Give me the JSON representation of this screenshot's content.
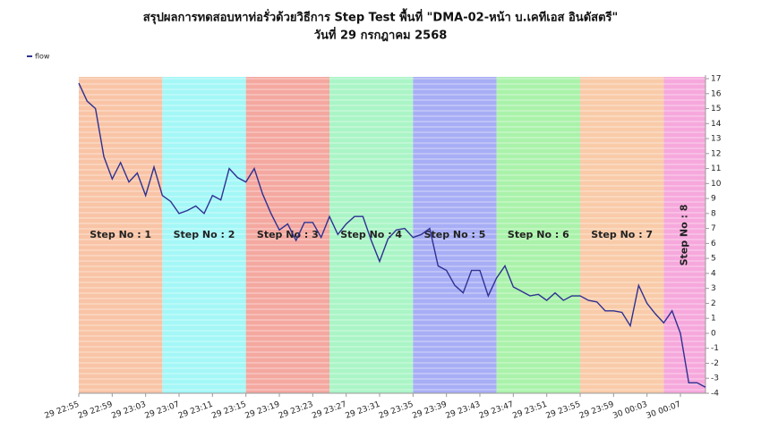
{
  "chart_data": {
    "type": "line",
    "title": "สรุปผลการทดสอบหาท่อรั่วด้วยวิธีการ Step Test พื้นที่ \"DMA-02-หน้า บ.เคทีเอส อินดัสตรี\"",
    "subtitle": "วันที่ 29 กรกฎาคม 2568",
    "x": [
      "29 22:55",
      "29 22:56",
      "29 22:57",
      "29 22:58",
      "29 22:59",
      "29 23:00",
      "29 23:01",
      "29 23:02",
      "29 23:03",
      "29 23:04",
      "29 23:05",
      "29 23:06",
      "29 23:07",
      "29 23:08",
      "29 23:09",
      "29 23:10",
      "29 23:11",
      "29 23:12",
      "29 23:13",
      "29 23:14",
      "29 23:15",
      "29 23:16",
      "29 23:17",
      "29 23:18",
      "29 23:19",
      "29 23:20",
      "29 23:21",
      "29 23:22",
      "29 23:23",
      "29 23:24",
      "29 23:25",
      "29 23:26",
      "29 23:27",
      "29 23:28",
      "29 23:29",
      "29 23:30",
      "29 23:31",
      "29 23:32",
      "29 23:33",
      "29 23:34",
      "29 23:35",
      "29 23:36",
      "29 23:37",
      "29 23:38",
      "29 23:39",
      "29 23:40",
      "29 23:41",
      "29 23:42",
      "29 23:43",
      "29 23:44",
      "29 23:45",
      "29 23:46",
      "29 23:47",
      "29 23:48",
      "29 23:49",
      "29 23:50",
      "29 23:51",
      "29 23:52",
      "29 23:53",
      "29 23:54",
      "29 23:55",
      "29 23:56",
      "29 23:57",
      "29 23:58",
      "29 23:59",
      "30 00:00",
      "30 00:01",
      "30 00:02",
      "30 00:03",
      "30 00:04",
      "30 00:05",
      "30 00:06",
      "30 00:07",
      "30 00:08",
      "30 00:09",
      "30 00:10"
    ],
    "series": [
      {
        "name": "flow",
        "color": "#2e3192",
        "values": [
          16.7,
          15.5,
          15.0,
          11.8,
          10.3,
          11.4,
          10.1,
          10.7,
          9.2,
          11.1,
          9.2,
          8.8,
          8.0,
          8.2,
          8.5,
          8.0,
          9.2,
          8.9,
          11.0,
          10.4,
          10.1,
          11.0,
          9.3,
          8.0,
          6.9,
          7.3,
          6.2,
          7.4,
          7.4,
          6.4,
          7.8,
          6.6,
          7.3,
          7.8,
          7.8,
          6.2,
          4.8,
          6.3,
          6.9,
          7.0,
          6.4,
          6.6,
          7.0,
          4.5,
          4.2,
          3.2,
          2.7,
          4.2,
          4.2,
          2.5,
          3.7,
          4.5,
          3.1,
          2.8,
          2.5,
          2.6,
          2.2,
          2.7,
          2.2,
          2.5,
          2.5,
          2.2,
          2.1,
          1.5,
          1.5,
          1.4,
          0.5,
          3.2,
          2.0,
          1.3,
          0.7,
          1.5,
          0.0,
          -3.3,
          -3.3,
          -3.6
        ]
      }
    ],
    "bands": [
      {
        "label": "Step No : 1",
        "start": "29 22:55",
        "end": "29 23:05",
        "color": "#f9c4a6"
      },
      {
        "label": "Step No : 2",
        "start": "29 23:05",
        "end": "29 23:15",
        "color": "#a4f7f7"
      },
      {
        "label": "Step No : 3",
        "start": "29 23:15",
        "end": "29 23:25",
        "color": "#f4a8a0"
      },
      {
        "label": "Step No : 4",
        "start": "29 23:25",
        "end": "29 23:35",
        "color": "#aaf5c6"
      },
      {
        "label": "Step No : 5",
        "start": "29 23:35",
        "end": "29 23:45",
        "color": "#a8aef5"
      },
      {
        "label": "Step No : 6",
        "start": "29 23:45",
        "end": "29 23:55",
        "color": "#aaf2aa"
      },
      {
        "label": "Step No : 7",
        "start": "29 23:55",
        "end": "30 00:05",
        "color": "#f9cba9"
      },
      {
        "label": "Step No : 8",
        "start": "30 00:05",
        "end": "30 00:10",
        "color": "#f6a8dc"
      }
    ],
    "xlim": [
      "29 22:55",
      "30 00:10"
    ],
    "xticks": [
      "29 22:55",
      "29 22:59",
      "29 23:03",
      "29 23:07",
      "29 23:11",
      "29 23:15",
      "29 23:19",
      "29 23:23",
      "29 23:27",
      "29 23:31",
      "29 23:35",
      "29 23:39",
      "29 23:43",
      "29 23:47",
      "29 23:51",
      "29 23:55",
      "29 23:59",
      "30 00:03",
      "30 00:07"
    ],
    "ylim": [
      -4,
      17
    ],
    "yticks": [
      17,
      16,
      15,
      14,
      13,
      12,
      11,
      10,
      9,
      8,
      7,
      6,
      5,
      4,
      3,
      2,
      1,
      0,
      -1,
      -2,
      -3,
      -4
    ],
    "legend": "top-left"
  }
}
